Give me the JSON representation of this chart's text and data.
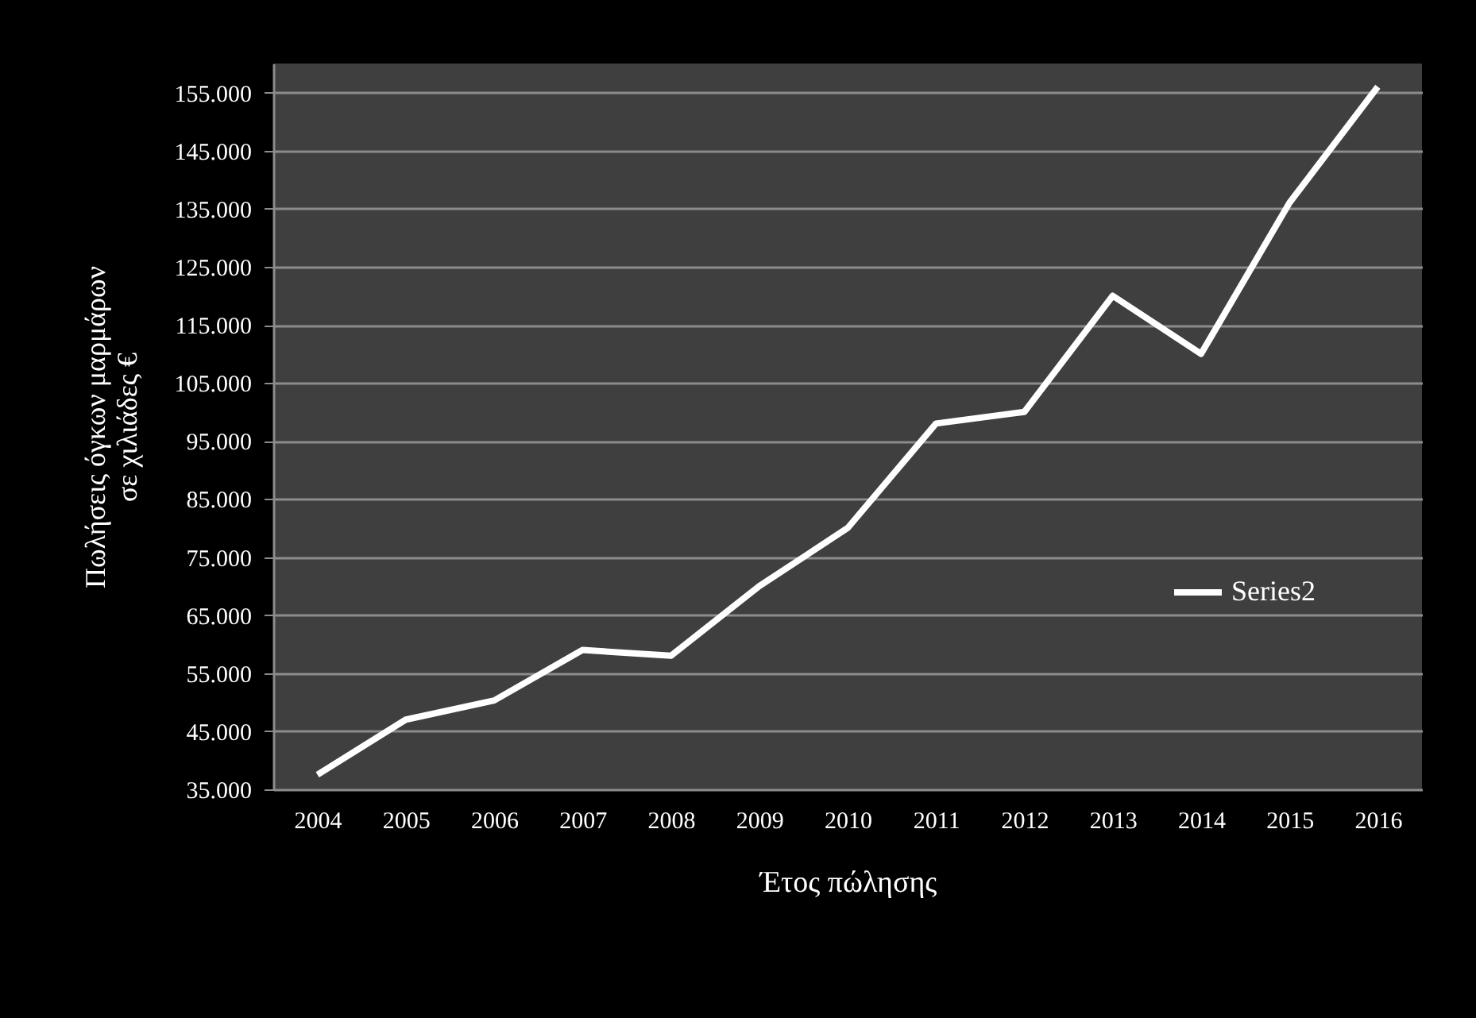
{
  "chart_data": {
    "type": "line",
    "xlabel": "Έτος πώλησης",
    "ylabel": "Πωλήσεις όγκων μαρμάρων\nσε χιλιάδες €",
    "categories": [
      "2004",
      "2005",
      "2006",
      "2007",
      "2008",
      "2009",
      "2010",
      "2011",
      "2012",
      "2013",
      "2014",
      "2015",
      "2016"
    ],
    "series": [
      {
        "name": "Series2",
        "color": "#ffffff",
        "values": [
          37500,
          47000,
          50300,
          59000,
          58000,
          70000,
          80000,
          98000,
          100000,
          120000,
          110000,
          136000,
          156000
        ]
      }
    ],
    "ylim": [
      35000,
      160000
    ],
    "yticks": [
      {
        "value": 35000,
        "label": "35.000"
      },
      {
        "value": 45000,
        "label": "45.000"
      },
      {
        "value": 55000,
        "label": "55.000"
      },
      {
        "value": 65000,
        "label": "65.000"
      },
      {
        "value": 75000,
        "label": "75.000"
      },
      {
        "value": 85000,
        "label": "85.000"
      },
      {
        "value": 95000,
        "label": "95.000"
      },
      {
        "value": 105000,
        "label": "105.000"
      },
      {
        "value": 115000,
        "label": "115.000"
      },
      {
        "value": 125000,
        "label": "125.000"
      },
      {
        "value": 135000,
        "label": "135.000"
      },
      {
        "value": 145000,
        "label": "145.000"
      },
      {
        "value": 155000,
        "label": "155.000"
      }
    ],
    "grid": "y",
    "legend": "right",
    "marker": "none",
    "line_style": "solid"
  }
}
